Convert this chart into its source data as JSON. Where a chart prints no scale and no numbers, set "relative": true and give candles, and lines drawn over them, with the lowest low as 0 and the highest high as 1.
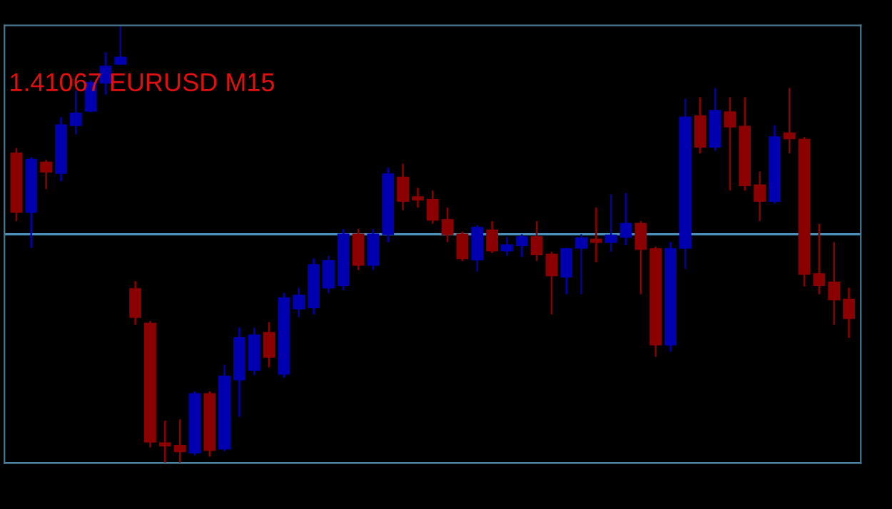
{
  "chart_data": {
    "type": "candlestick",
    "title": "1.41067 EURUSD M15",
    "relative": true,
    "categories": [
      null,
      null,
      null,
      null,
      null,
      null,
      null,
      null,
      null,
      null,
      null,
      null,
      null,
      null,
      null,
      null,
      null,
      null,
      null,
      null,
      null,
      null,
      null,
      null,
      null,
      null,
      null,
      null,
      null,
      null,
      null,
      null,
      null,
      null,
      null,
      null,
      null,
      null,
      null,
      null,
      null,
      null,
      null,
      null,
      null,
      null,
      null,
      null,
      null,
      null,
      null,
      null,
      null,
      null,
      null,
      null,
      null
    ],
    "ohlc": [
      [
        0.708,
        0.72,
        0.553,
        0.574
      ],
      [
        0.574,
        0.699,
        0.492,
        0.693
      ],
      [
        0.687,
        0.693,
        0.626,
        0.666
      ],
      [
        0.663,
        0.79,
        0.644,
        0.772
      ],
      [
        0.772,
        0.851,
        0.751,
        0.799
      ],
      [
        0.805,
        0.875,
        0.802,
        0.869
      ],
      [
        0.869,
        0.939,
        0.842,
        0.906
      ],
      [
        0.912,
        1,
        0.912,
        0.927
      ],
      [
        0.398,
        0.416,
        0.316,
        0.334
      ],
      [
        0.319,
        0.325,
        0.036,
        0.049
      ],
      [
        0.046,
        0.097,
        0,
        0.04
      ],
      [
        0.04,
        0.1,
        0,
        0.027
      ],
      [
        0.024,
        0.164,
        0.018,
        0.158
      ],
      [
        0.158,
        0.164,
        0.015,
        0.03
      ],
      [
        0.033,
        0.225,
        0.027,
        0.198
      ],
      [
        0.191,
        0.31,
        0.106,
        0.286
      ],
      [
        0.213,
        0.31,
        0.201,
        0.292
      ],
      [
        0.298,
        0.322,
        0.219,
        0.243
      ],
      [
        0.204,
        0.389,
        0.195,
        0.377
      ],
      [
        0.353,
        0.401,
        0.334,
        0.383
      ],
      [
        0.356,
        0.468,
        0.34,
        0.453
      ],
      [
        0.401,
        0.474,
        0.389,
        0.462
      ],
      [
        0.407,
        0.535,
        0.395,
        0.523
      ],
      [
        0.523,
        0.535,
        0.441,
        0.453
      ],
      [
        0.453,
        0.535,
        0.441,
        0.523
      ],
      [
        0.523,
        0.675,
        0.505,
        0.66
      ],
      [
        0.653,
        0.684,
        0.578,
        0.599
      ],
      [
        0.608,
        0.629,
        0.584,
        0.602
      ],
      [
        0.602,
        0.623,
        0.547,
        0.556
      ],
      [
        0.556,
        0.584,
        0.505,
        0.523
      ],
      [
        0.523,
        0.529,
        0.462,
        0.468
      ],
      [
        0.465,
        0.544,
        0.438,
        0.538
      ],
      [
        0.532,
        0.553,
        0.48,
        0.486
      ],
      [
        0.486,
        0.517,
        0.474,
        0.498
      ],
      [
        0.498,
        0.523,
        0.471,
        0.517
      ],
      [
        0.517,
        0.553,
        0.462,
        0.477
      ],
      [
        0.477,
        0.483,
        0.34,
        0.429
      ],
      [
        0.426,
        0.492,
        0.386,
        0.489
      ],
      [
        0.492,
        0.523,
        0.386,
        0.514
      ],
      [
        0.511,
        0.584,
        0.459,
        0.505
      ],
      [
        0.505,
        0.614,
        0.483,
        0.52
      ],
      [
        0.517,
        0.617,
        0.498,
        0.547
      ],
      [
        0.547,
        0.553,
        0.386,
        0.489
      ],
      [
        0.489,
        0.495,
        0.243,
        0.271
      ],
      [
        0.271,
        0.505,
        0.255,
        0.489
      ],
      [
        0.492,
        0.833,
        0.444,
        0.79
      ],
      [
        0.793,
        0.836,
        0.708,
        0.723
      ],
      [
        0.723,
        0.857,
        0.714,
        0.805
      ],
      [
        0.802,
        0.836,
        0.623,
        0.769
      ],
      [
        0.769,
        0.836,
        0.623,
        0.635
      ],
      [
        0.635,
        0.666,
        0.553,
        0.599
      ],
      [
        0.599,
        0.772,
        0.593,
        0.745
      ],
      [
        0.754,
        0.857,
        0.708,
        0.742
      ],
      [
        0.739,
        0.745,
        0.404,
        0.432
      ],
      [
        0.432,
        0.547,
        0.386,
        0.407
      ],
      [
        0.413,
        0.505,
        0.316,
        0.374
      ],
      [
        0.374,
        0.401,
        0.286,
        0.331
      ]
    ],
    "colors": [
      "#8b0000",
      "#0000b0",
      "#8b0000",
      "#0000b0",
      "#0000b0",
      "#0000b0",
      "#0000b0",
      "#0000b0",
      "#8b0000",
      "#8b0000",
      "#8b0000",
      "#8b0000",
      "#0000b0",
      "#8b0000",
      "#0000b0",
      "#0000b0",
      "#0000b0",
      "#8b0000",
      "#0000b0",
      "#0000b0",
      "#0000b0",
      "#0000b0",
      "#0000b0",
      "#8b0000",
      "#0000b0",
      "#0000b0",
      "#8b0000",
      "#8b0000",
      "#8b0000",
      "#8b0000",
      "#8b0000",
      "#0000b0",
      "#8b0000",
      "#0000b0",
      "#0000b0",
      "#8b0000",
      "#8b0000",
      "#0000b0",
      "#0000b0",
      "#8b0000",
      "#0000b0",
      "#0000b0",
      "#8b0000",
      "#8b0000",
      "#0000b0",
      "#0000b0",
      "#8b0000",
      "#0000b0",
      "#8b0000",
      "#8b0000",
      "#8b0000",
      "#0000b0",
      "#8b0000",
      "#8b0000",
      "#8b0000",
      "#8b0000",
      "#8b0000"
    ],
    "ref_lines": [
      {
        "axis": "y",
        "value": 0.523,
        "color": "#4a90b8"
      },
      {
        "axis": "y",
        "value": 0,
        "color": "#4a90b8"
      }
    ],
    "grid": false
  }
}
